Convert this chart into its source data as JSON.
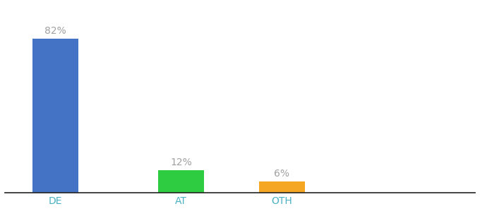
{
  "categories": [
    "DE",
    "AT",
    "OTH"
  ],
  "values": [
    82,
    12,
    6
  ],
  "bar_colors": [
    "#4472c4",
    "#2ecc40",
    "#f5a623"
  ],
  "label_color": "#a0a0a0",
  "ylim": [
    0,
    100
  ],
  "background_color": "#ffffff",
  "bar_width": 0.55,
  "label_fontsize": 10,
  "tick_fontsize": 10,
  "tick_color": "#4ab0c1",
  "x_positions": [
    0.5,
    2.0,
    3.2
  ]
}
